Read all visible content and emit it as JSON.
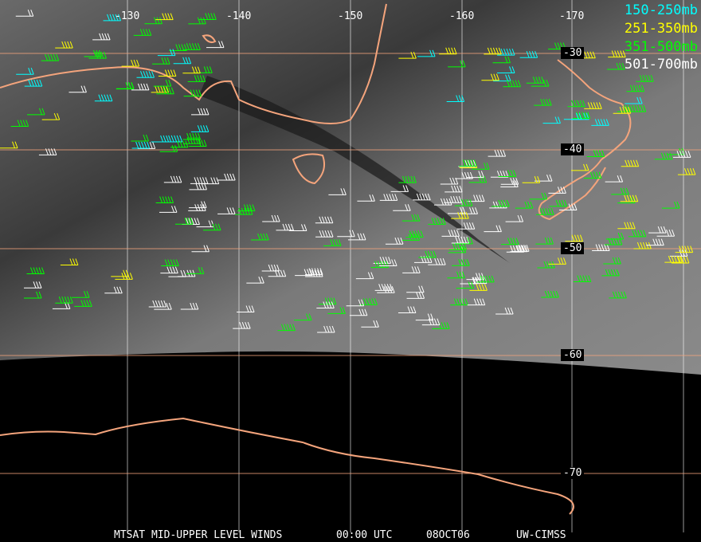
{
  "title": "MTSAT MID-UPPER LEVEL WINDS",
  "time": "00:00 UTC",
  "date": "08OCT06",
  "source": "UW-CIMSS",
  "legend": [
    {
      "label": "150-250mb",
      "color": "#00ffff"
    },
    {
      "label": "251-350mb",
      "color": "#ffff00"
    },
    {
      "label": "351-500mb",
      "color": "#00ff00"
    },
    {
      "label": "501-700mb",
      "color": "#ffffff"
    }
  ],
  "longitude_labels": [
    "-130",
    "-140",
    "-150",
    "-160",
    "-170"
  ],
  "latitude_labels": [
    "-30",
    "-40",
    "-50",
    "-60",
    "-70"
  ],
  "colors": {
    "coastline": "#f4a47c",
    "latitude_grid": "#f4a47c",
    "longitude_grid": "#ffffff"
  }
}
